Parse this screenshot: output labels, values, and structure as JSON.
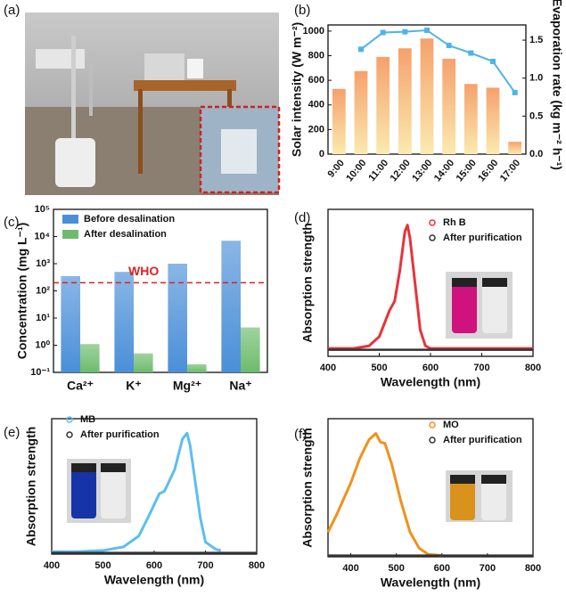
{
  "photo": {
    "panel": "(a)"
  },
  "chart_data": [
    {
      "type": "bar",
      "panel": "(b)",
      "categories": [
        "9:00",
        "10:00",
        "11:00",
        "12:00",
        "13:00",
        "14:00",
        "15:00",
        "16:00",
        "17:00"
      ],
      "y_label": "Solar intensity (W m⁻²)",
      "y2_label": "Evaporation rate (kg m⁻² h⁻¹)",
      "series": [
        {
          "color": "#f6a16c",
          "values": [
            530,
            675,
            790,
            860,
            940,
            775,
            570,
            540,
            100
          ]
        },
        {
          "color": "#4fb3e8",
          "axis": "y2",
          "values": [
            null,
            1.38,
            1.6,
            1.61,
            1.63,
            1.43,
            1.33,
            1.22,
            0.81
          ]
        }
      ],
      "ylim": [
        0,
        1050
      ],
      "yticks": [
        0,
        200,
        400,
        600,
        800,
        1000
      ],
      "y2lim": [
        0,
        1.7
      ],
      "y2ticks": [
        {
          "value": 0,
          "label": "0.0"
        },
        {
          "value": 0.5,
          "label": "0.5"
        },
        {
          "value": 1,
          "label": "1.0"
        },
        {
          "value": 1.5,
          "label": "1.5"
        }
      ]
    },
    {
      "type": "bar",
      "panel": "(c)",
      "log_scale": true,
      "categories": [
        "Ca²⁺",
        "K⁺",
        "Mg²⁺",
        "Na⁺"
      ],
      "y_label": "Concentration (mg L⁻¹)",
      "series": [
        {
          "name": "Before desalination",
          "color": "#4a8fd8",
          "values": [
            350,
            500,
            1000,
            7000
          ]
        },
        {
          "name": "After desalination",
          "color": "#6dbb6d",
          "values": [
            1.1,
            0.5,
            0.2,
            4.5
          ]
        }
      ],
      "reference_line": {
        "value": 200,
        "label": "WHO",
        "color": "#e02020"
      },
      "ylim": [
        0.1,
        100000
      ],
      "yticks": [
        {
          "value": 0.1,
          "label": "10⁻¹"
        },
        {
          "value": 1,
          "label": "10⁰"
        },
        {
          "value": 10,
          "label": "10¹"
        },
        {
          "value": 100,
          "label": "10²"
        },
        {
          "value": 1000,
          "label": "10³"
        },
        {
          "value": 10000,
          "label": "10⁴"
        },
        {
          "value": 100000,
          "label": "10⁵"
        }
      ]
    },
    {
      "type": "line",
      "panel": "(d)",
      "x_label": "Wavelength (nm)",
      "y_label": "Absorption strength",
      "xlim": [
        400,
        800
      ],
      "xticks": [
        400,
        500,
        600,
        700,
        800
      ],
      "ylim": [
        0,
        1.12
      ],
      "series": [
        {
          "name": "Rh B",
          "color": "#e8333a",
          "x": [
            400,
            450,
            480,
            500,
            510,
            520,
            530,
            540,
            550,
            555,
            560,
            570,
            580,
            590,
            600,
            700,
            800
          ],
          "values": [
            0.06,
            0.06,
            0.08,
            0.15,
            0.25,
            0.35,
            0.42,
            0.65,
            0.95,
            1.0,
            0.9,
            0.55,
            0.2,
            0.08,
            0.06,
            0.06,
            0.06
          ]
        },
        {
          "name": "After purification",
          "color": "#333333",
          "x": [
            400,
            800
          ],
          "values": [
            0.05,
            0.05
          ]
        }
      ]
    },
    {
      "type": "line",
      "panel": "(e)",
      "x_label": "Wavelength (nm)",
      "y_label": "Absorption strength",
      "xlim": [
        400,
        800
      ],
      "xticks": [
        400,
        500,
        600,
        700,
        800
      ],
      "ylim": [
        0,
        1.12
      ],
      "series": [
        {
          "name": "MB",
          "color": "#5bbfef",
          "x": [
            400,
            450,
            500,
            540,
            570,
            590,
            610,
            620,
            640,
            655,
            664,
            670,
            680,
            690,
            700,
            720,
            730
          ],
          "values": [
            0.02,
            0.02,
            0.03,
            0.06,
            0.15,
            0.32,
            0.5,
            0.52,
            0.7,
            0.95,
            1.0,
            0.9,
            0.6,
            0.3,
            0.1,
            0.04,
            0.03
          ]
        },
        {
          "name": "After purification",
          "color": "#333333",
          "x": [
            400,
            800
          ],
          "values": [
            0.01,
            0.01
          ]
        }
      ]
    },
    {
      "type": "line",
      "panel": "(f)",
      "x_label": "Wavelength (nm)",
      "y_label": "Absorption strength",
      "xlim": [
        350,
        800
      ],
      "xticks": [
        400,
        500,
        600,
        700,
        800
      ],
      "ylim": [
        0,
        1.12
      ],
      "series": [
        {
          "name": "MO",
          "color": "#f0911c",
          "x": [
            350,
            370,
            400,
            420,
            440,
            455,
            465,
            475,
            490,
            510,
            530,
            550,
            570,
            600
          ],
          "values": [
            0.2,
            0.35,
            0.6,
            0.8,
            0.95,
            1.0,
            0.93,
            0.92,
            0.75,
            0.45,
            0.2,
            0.07,
            0.02,
            0.01
          ]
        },
        {
          "name": "After purification",
          "color": "#333333",
          "x": [
            350,
            800
          ],
          "values": [
            0.01,
            0.01
          ]
        }
      ]
    }
  ]
}
